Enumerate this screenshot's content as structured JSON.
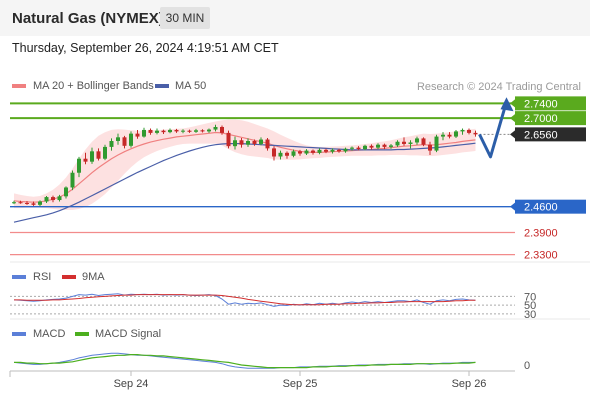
{
  "header": {
    "title": "Natural Gas (NYMEX)",
    "timeframe": "30 MIN",
    "datetime": "Thursday, September 26, 2024 4:19:51 AM CET"
  },
  "legend": {
    "ma20_label": "MA 20 + Bollinger Bands",
    "ma50_label": "MA 50",
    "copyright": "Research © 2024 Trading Central",
    "rsi_label": "RSI",
    "rsi9_label": "9MA",
    "macd_label": "MACD",
    "macd_signal_label": "MACD Signal"
  },
  "colors": {
    "candle_up": "#2f9a2f",
    "candle_down": "#c62828",
    "ma20": "#f08080",
    "bollinger": "#fcd7d7",
    "ma50": "#4a5fa8",
    "resistance": "#5aaa1e",
    "pivot": "#2a66c8",
    "support": "#f28b8b",
    "current": "#2b2b2b",
    "rsi": "#5b7fd8",
    "rsi9": "#d32f2f",
    "macd": "#5b7fd8",
    "macd_signal": "#4caf1e"
  },
  "chart_data": {
    "type": "candlestick",
    "ylim": [
      2.31,
      2.76
    ],
    "x_ticks": [
      "Sep 24",
      "Sep 25",
      "Sep 26"
    ],
    "current_price": 2.656,
    "levels": [
      {
        "value": 2.74,
        "label": "2.7400",
        "kind": "resistance"
      },
      {
        "value": 2.7,
        "label": "2.7000",
        "kind": "resistance"
      },
      {
        "value": 2.656,
        "label": "2.6560",
        "kind": "current"
      },
      {
        "value": 2.46,
        "label": "2.4600",
        "kind": "pivot"
      },
      {
        "value": 2.39,
        "label": "2.3900",
        "kind": "support"
      },
      {
        "value": 2.33,
        "label": "2.3300",
        "kind": "support"
      }
    ],
    "scenario_path": [
      2.656,
      2.595,
      2.735
    ],
    "candles": [
      [
        2.471,
        2.476,
        2.467,
        2.472
      ],
      [
        2.472,
        2.476,
        2.468,
        2.47
      ],
      [
        2.47,
        2.475,
        2.465,
        2.469
      ],
      [
        2.469,
        2.474,
        2.462,
        2.465
      ],
      [
        2.465,
        2.477,
        2.461,
        2.474
      ],
      [
        2.474,
        2.489,
        2.47,
        2.486
      ],
      [
        2.486,
        2.49,
        2.472,
        2.478
      ],
      [
        2.478,
        2.492,
        2.474,
        2.488
      ],
      [
        2.488,
        2.515,
        2.482,
        2.512
      ],
      [
        2.512,
        2.558,
        2.505,
        2.552
      ],
      [
        2.552,
        2.595,
        2.54,
        2.59
      ],
      [
        2.59,
        2.606,
        2.575,
        2.582
      ],
      [
        2.582,
        2.62,
        2.576,
        2.61
      ],
      [
        2.61,
        2.618,
        2.585,
        2.59
      ],
      [
        2.59,
        2.628,
        2.586,
        2.622
      ],
      [
        2.622,
        2.645,
        2.612,
        2.638
      ],
      [
        2.638,
        2.658,
        2.628,
        2.648
      ],
      [
        2.648,
        2.652,
        2.618,
        2.625
      ],
      [
        2.625,
        2.664,
        2.62,
        2.658
      ],
      [
        2.658,
        2.668,
        2.644,
        2.65
      ],
      [
        2.65,
        2.674,
        2.647,
        2.668
      ],
      [
        2.668,
        2.672,
        2.655,
        2.66
      ],
      [
        2.66,
        2.672,
        2.656,
        2.666
      ],
      [
        2.666,
        2.669,
        2.657,
        2.662
      ],
      [
        2.662,
        2.672,
        2.659,
        2.668
      ],
      [
        2.668,
        2.671,
        2.66,
        2.664
      ],
      [
        2.664,
        2.67,
        2.659,
        2.666
      ],
      [
        2.666,
        2.669,
        2.66,
        2.663
      ],
      [
        2.663,
        2.671,
        2.66,
        2.667
      ],
      [
        2.667,
        2.67,
        2.661,
        2.664
      ],
      [
        2.664,
        2.672,
        2.66,
        2.669
      ],
      [
        2.669,
        2.682,
        2.664,
        2.676
      ],
      [
        2.676,
        2.68,
        2.655,
        2.66
      ],
      [
        2.66,
        2.666,
        2.618,
        2.624
      ],
      [
        2.624,
        2.65,
        2.615,
        2.64
      ],
      [
        2.64,
        2.646,
        2.62,
        2.628
      ],
      [
        2.628,
        2.645,
        2.622,
        2.638
      ],
      [
        2.638,
        2.642,
        2.625,
        2.63
      ],
      [
        2.63,
        2.648,
        2.626,
        2.642
      ],
      [
        2.642,
        2.646,
        2.612,
        2.618
      ],
      [
        2.618,
        2.624,
        2.585,
        2.596
      ],
      [
        2.596,
        2.612,
        2.588,
        2.606
      ],
      [
        2.606,
        2.61,
        2.59,
        2.598
      ],
      [
        2.598,
        2.615,
        2.594,
        2.61
      ],
      [
        2.61,
        2.614,
        2.598,
        2.604
      ],
      [
        2.604,
        2.616,
        2.6,
        2.612
      ],
      [
        2.612,
        2.615,
        2.601,
        2.606
      ],
      [
        2.606,
        2.618,
        2.602,
        2.614
      ],
      [
        2.614,
        2.617,
        2.605,
        2.609
      ],
      [
        2.609,
        2.618,
        2.604,
        2.614
      ],
      [
        2.614,
        2.617,
        2.606,
        2.61
      ],
      [
        2.61,
        2.62,
        2.606,
        2.617
      ],
      [
        2.617,
        2.623,
        2.612,
        2.62
      ],
      [
        2.62,
        2.624,
        2.613,
        2.616
      ],
      [
        2.616,
        2.628,
        2.613,
        2.625
      ],
      [
        2.625,
        2.629,
        2.615,
        2.62
      ],
      [
        2.62,
        2.632,
        2.616,
        2.628
      ],
      [
        2.628,
        2.631,
        2.616,
        2.622
      ],
      [
        2.622,
        2.63,
        2.617,
        2.626
      ],
      [
        2.626,
        2.64,
        2.622,
        2.636
      ],
      [
        2.636,
        2.648,
        2.625,
        2.63
      ],
      [
        2.63,
        2.64,
        2.618,
        2.634
      ],
      [
        2.634,
        2.65,
        2.628,
        2.645
      ],
      [
        2.645,
        2.648,
        2.624,
        2.628
      ],
      [
        2.628,
        2.636,
        2.6,
        2.612
      ],
      [
        2.612,
        2.655,
        2.608,
        2.65
      ],
      [
        2.65,
        2.662,
        2.64,
        2.655
      ],
      [
        2.655,
        2.662,
        2.645,
        2.65
      ],
      [
        2.65,
        2.668,
        2.646,
        2.664
      ],
      [
        2.664,
        2.672,
        2.655,
        2.668
      ],
      [
        2.668,
        2.672,
        2.656,
        2.66
      ],
      [
        2.66,
        2.666,
        2.65,
        2.656
      ]
    ],
    "ma20": [
      2.476,
      2.474,
      2.473,
      2.472,
      2.473,
      2.476,
      2.48,
      2.486,
      2.495,
      2.507,
      2.522,
      2.537,
      2.552,
      2.566,
      2.578,
      2.59,
      2.6,
      2.609,
      2.617,
      2.624,
      2.63,
      2.635,
      2.639,
      2.643,
      2.646,
      2.649,
      2.651,
      2.653,
      2.655,
      2.657,
      2.659,
      2.661,
      2.66,
      2.656,
      2.652,
      2.648,
      2.644,
      2.64,
      2.636,
      2.632,
      2.626,
      2.621,
      2.617,
      2.613,
      2.61,
      2.608,
      2.607,
      2.607,
      2.608,
      2.609,
      2.61,
      2.611,
      2.612,
      2.613,
      2.614,
      2.615,
      2.617,
      2.618,
      2.62,
      2.622,
      2.624,
      2.625,
      2.627,
      2.628,
      2.627,
      2.628,
      2.63,
      2.632,
      2.634,
      2.637,
      2.639,
      2.641
    ],
    "bb_width": [
      0.02,
      0.018,
      0.016,
      0.015,
      0.016,
      0.02,
      0.026,
      0.034,
      0.044,
      0.056,
      0.068,
      0.078,
      0.084,
      0.086,
      0.084,
      0.078,
      0.07,
      0.06,
      0.05,
      0.042,
      0.036,
      0.032,
      0.028,
      0.026,
      0.024,
      0.022,
      0.021,
      0.022,
      0.024,
      0.026,
      0.028,
      0.03,
      0.034,
      0.04,
      0.044,
      0.046,
      0.046,
      0.044,
      0.042,
      0.04,
      0.038,
      0.034,
      0.03,
      0.026,
      0.022,
      0.018,
      0.016,
      0.015,
      0.014,
      0.014,
      0.014,
      0.014,
      0.014,
      0.015,
      0.016,
      0.017,
      0.018,
      0.019,
      0.02,
      0.022,
      0.024,
      0.026,
      0.028,
      0.03,
      0.03,
      0.03,
      0.03,
      0.03,
      0.03,
      0.03,
      0.03,
      0.03
    ],
    "ma50": [
      2.418,
      2.422,
      2.426,
      2.43,
      2.434,
      2.438,
      2.443,
      2.449,
      2.456,
      2.464,
      2.472,
      2.481,
      2.49,
      2.499,
      2.508,
      2.517,
      2.526,
      2.535,
      2.544,
      2.553,
      2.561,
      2.569,
      2.577,
      2.585,
      2.592,
      2.599,
      2.605,
      2.611,
      2.616,
      2.621,
      2.625,
      2.628,
      2.63,
      2.631,
      2.631,
      2.631,
      2.63,
      2.629,
      2.628,
      2.627,
      2.626,
      2.625,
      2.624,
      2.623,
      2.622,
      2.621,
      2.62,
      2.619,
      2.618,
      2.617,
      2.616,
      2.615,
      2.614,
      2.614,
      2.614,
      2.614,
      2.614,
      2.614,
      2.614,
      2.615,
      2.615,
      2.616,
      2.617,
      2.618,
      2.619,
      2.62,
      2.622,
      2.624,
      2.626,
      2.628,
      2.63,
      2.632
    ],
    "rsi": {
      "levels": [
        70,
        50,
        30
      ],
      "rsi": [
        62,
        61,
        60,
        59,
        60,
        62,
        63,
        64,
        66,
        70,
        74,
        73,
        75,
        72,
        74,
        75,
        76,
        73,
        75,
        74,
        75,
        74,
        75,
        73,
        74,
        73,
        74,
        73,
        72,
        73,
        74,
        72,
        64,
        52,
        55,
        52,
        54,
        53,
        55,
        51,
        47,
        50,
        49,
        52,
        50,
        53,
        51,
        54,
        52,
        54,
        52,
        55,
        57,
        55,
        58,
        56,
        58,
        56,
        58,
        60,
        60,
        58,
        62,
        56,
        52,
        60,
        62,
        60,
        63,
        64,
        62,
        61
      ],
      "ma9": [
        62,
        62,
        61,
        61,
        61,
        61,
        62,
        62,
        63,
        64,
        65,
        67,
        68,
        69,
        70,
        71,
        72,
        73,
        73,
        74,
        74,
        74,
        74,
        74,
        74,
        74,
        74,
        73,
        73,
        73,
        73,
        73,
        72,
        70,
        68,
        66,
        63,
        61,
        59,
        57,
        55,
        53,
        52,
        51,
        51,
        51,
        51,
        51,
        52,
        52,
        52,
        53,
        53,
        54,
        54,
        55,
        55,
        56,
        56,
        57,
        57,
        58,
        58,
        58,
        58,
        58,
        58,
        59,
        60,
        60,
        61,
        61
      ]
    },
    "macd": {
      "zero_label": "0",
      "macd": [
        0.004,
        0.003,
        0.002,
        0.001,
        0.001,
        0.002,
        0.003,
        0.004,
        0.006,
        0.008,
        0.011,
        0.013,
        0.015,
        0.016,
        0.017,
        0.018,
        0.018,
        0.017,
        0.016,
        0.015,
        0.015,
        0.014,
        0.013,
        0.012,
        0.011,
        0.01,
        0.009,
        0.008,
        0.007,
        0.006,
        0.005,
        0.004,
        0.002,
        -0.001,
        -0.003,
        -0.004,
        -0.005,
        -0.005,
        -0.005,
        -0.005,
        -0.005,
        -0.004,
        -0.004,
        -0.004,
        -0.003,
        -0.003,
        -0.003,
        -0.002,
        -0.002,
        -0.002,
        -0.001,
        -0.001,
        -0.001,
        0.0,
        0.0,
        0.0,
        0.001,
        0.001,
        0.001,
        0.001,
        0.002,
        0.002,
        0.002,
        0.002,
        0.001,
        0.002,
        0.003,
        0.003,
        0.003,
        0.004,
        0.004,
        0.004
      ],
      "signal": [
        0.004,
        0.004,
        0.003,
        0.003,
        0.002,
        0.002,
        0.003,
        0.003,
        0.004,
        0.005,
        0.007,
        0.009,
        0.011,
        0.012,
        0.013,
        0.014,
        0.015,
        0.015,
        0.016,
        0.016,
        0.015,
        0.015,
        0.014,
        0.014,
        0.013,
        0.012,
        0.011,
        0.01,
        0.009,
        0.008,
        0.007,
        0.006,
        0.005,
        0.004,
        0.002,
        0.0,
        -0.001,
        -0.002,
        -0.003,
        -0.004,
        -0.004,
        -0.004,
        -0.004,
        -0.004,
        -0.004,
        -0.004,
        -0.003,
        -0.003,
        -0.003,
        -0.002,
        -0.002,
        -0.002,
        -0.001,
        -0.001,
        -0.001,
        0.0,
        0.0,
        0.0,
        0.001,
        0.001,
        0.001,
        0.001,
        0.002,
        0.002,
        0.002,
        0.002,
        0.002,
        0.002,
        0.003,
        0.003,
        0.003,
        0.004
      ]
    }
  }
}
